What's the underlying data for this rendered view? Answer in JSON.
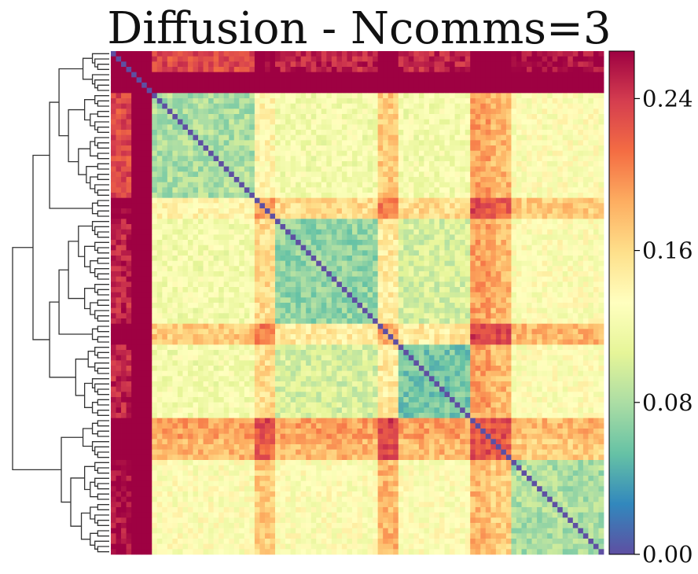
{
  "title": "Diffusion - Ncomms=3",
  "chart_data": {
    "type": "heatmap",
    "title": "Diffusion - Ncomms=3",
    "xlabel": "",
    "ylabel": "",
    "matrix_size": 96,
    "dendrogram": "left",
    "value_range": [
      0.0,
      0.265
    ],
    "groups": [
      {
        "size": 4,
        "within": 0.13,
        "row_offset": 0.1
      },
      {
        "size": 4,
        "within": 0.1,
        "row_offset": 0.16
      },
      {
        "size": 20,
        "within": 0.08,
        "row_offset": 0.0
      },
      {
        "size": 4,
        "within": 0.11,
        "row_offset": 0.04
      },
      {
        "size": 20,
        "within": 0.07,
        "row_offset": 0.0
      },
      {
        "size": 4,
        "within": 0.09,
        "row_offset": 0.05
      },
      {
        "size": 14,
        "within": 0.06,
        "row_offset": 0.0
      },
      {
        "size": 4,
        "within": 0.08,
        "row_offset": 0.07
      },
      {
        "size": 4,
        "within": 0.1,
        "row_offset": 0.06
      },
      {
        "size": 18,
        "within": 0.06,
        "row_offset": 0.01
      }
    ],
    "colorbar": {
      "ticks": [
        0.0,
        0.08,
        0.16,
        0.24
      ],
      "tick_labels": [
        "0.00",
        "0.08",
        "0.16",
        "0.24"
      ],
      "colormap": "Spectral_r",
      "colors": [
        "#5e4fa2",
        "#3288bd",
        "#66c2a5",
        "#abdda4",
        "#e6f598",
        "#ffffbf",
        "#fee08b",
        "#fdae61",
        "#f46d43",
        "#d53e4f",
        "#9e0142"
      ]
    }
  }
}
